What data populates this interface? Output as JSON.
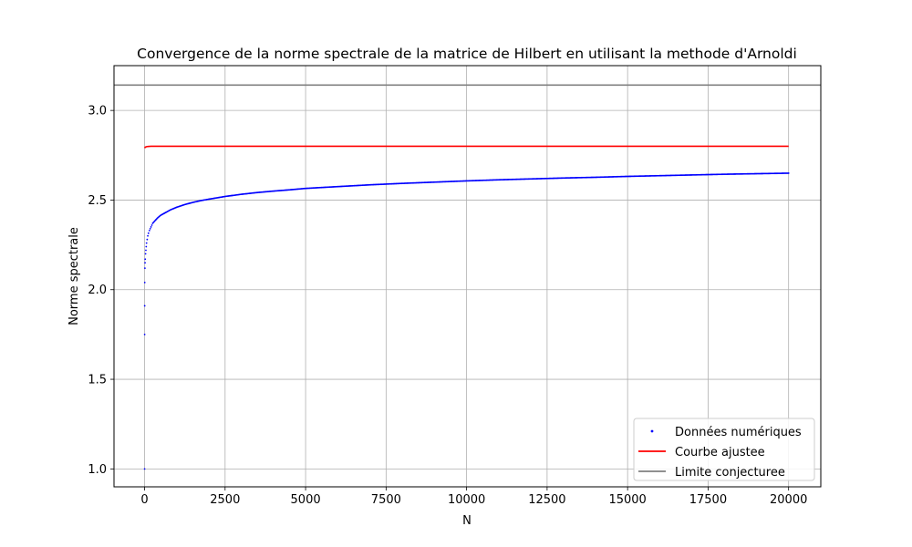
{
  "chart_data": {
    "type": "scatter",
    "title": "Convergence de la norme spectrale de la matrice de Hilbert en utilisant la methode d'Arnoldi",
    "xlabel": "N",
    "ylabel": "Norme spectrale",
    "xlim": [
      -950,
      21000
    ],
    "ylim": [
      0.9,
      3.25
    ],
    "xticks": [
      0,
      2500,
      5000,
      7500,
      10000,
      12500,
      15000,
      17500,
      20000
    ],
    "yticks": [
      1.0,
      1.5,
      2.0,
      2.5,
      3.0
    ],
    "ytick_labels": [
      "1.0",
      "1.5",
      "2.0",
      "2.5",
      "3.0"
    ],
    "grid": true,
    "legend_position": "lower-right",
    "series": [
      {
        "name": "Données numériques",
        "kind": "scatter",
        "color": "#0000ff",
        "x": [
          1,
          2,
          3,
          5,
          10,
          15,
          20,
          30,
          40,
          50,
          60,
          80,
          100,
          120,
          150,
          200,
          250,
          300,
          400,
          500,
          600,
          800,
          1000,
          1250,
          1500,
          1750,
          2000,
          2500,
          3000,
          3500,
          4000,
          4500,
          5000,
          6000,
          7000,
          8000,
          9000,
          10000,
          11000,
          12000,
          13000,
          14000,
          15000,
          16000,
          17000,
          18000,
          19000,
          20000
        ],
        "y": [
          1.0,
          1.75,
          1.91,
          2.04,
          2.12,
          2.15,
          2.17,
          2.2,
          2.22,
          2.24,
          2.26,
          2.28,
          2.3,
          2.315,
          2.33,
          2.35,
          2.37,
          2.38,
          2.4,
          2.415,
          2.425,
          2.445,
          2.46,
          2.475,
          2.487,
          2.497,
          2.505,
          2.52,
          2.532,
          2.542,
          2.55,
          2.557,
          2.565,
          2.575,
          2.585,
          2.593,
          2.6,
          2.607,
          2.613,
          2.618,
          2.623,
          2.627,
          2.632,
          2.636,
          2.64,
          2.644,
          2.647,
          2.65
        ]
      },
      {
        "name": "Courbe ajustee",
        "kind": "line",
        "color": "#ff0000",
        "x": [
          1,
          20,
          60,
          100,
          200,
          500,
          1000,
          5000,
          10000,
          15000,
          20000
        ],
        "y": [
          2.79,
          2.795,
          2.798,
          2.799,
          2.8,
          2.8,
          2.8,
          2.8,
          2.8,
          2.8,
          2.8
        ]
      },
      {
        "name": "Limite conjecturee",
        "kind": "hline",
        "color": "#808080",
        "y": 3.14159
      }
    ]
  }
}
